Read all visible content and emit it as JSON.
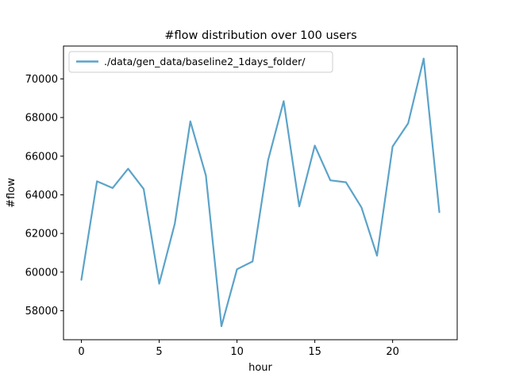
{
  "chart_data": {
    "type": "line",
    "title": "#flow distribution over 100 users",
    "xlabel": "hour",
    "ylabel": "#flow",
    "xlim": [
      -1.15,
      24.15
    ],
    "ylim": [
      56500,
      71700
    ],
    "xticks": [
      0,
      5,
      10,
      15,
      20
    ],
    "yticks": [
      58000,
      60000,
      62000,
      64000,
      66000,
      68000,
      70000
    ],
    "legend_position": "top-left",
    "grid": false,
    "series": [
      {
        "name": "./data/gen_data/baseline2_1days_folder/",
        "color": "#5ba3c9",
        "x": [
          0,
          1,
          2,
          3,
          4,
          5,
          6,
          7,
          8,
          9,
          10,
          11,
          12,
          13,
          14,
          15,
          16,
          17,
          18,
          19,
          20,
          21,
          22,
          23
        ],
        "y": [
          59600,
          64700,
          64350,
          65350,
          64300,
          59400,
          62500,
          67800,
          65000,
          57200,
          60150,
          60550,
          65800,
          68850,
          63400,
          66550,
          64750,
          64650,
          63350,
          60850,
          66500,
          67700,
          71050,
          63100
        ]
      }
    ]
  }
}
